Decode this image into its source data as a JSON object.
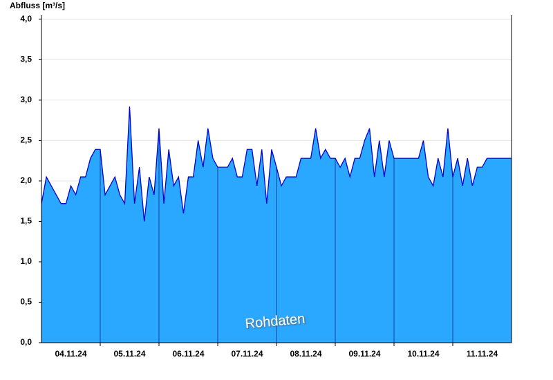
{
  "chart_data": {
    "type": "area",
    "y_label": "Abfluss [m³/s]",
    "watermark": "Rohdaten",
    "xlim": [
      0,
      192
    ],
    "xticks": [
      {
        "value": 12,
        "label": "04.11.24"
      },
      {
        "value": 36,
        "label": "05.11.24"
      },
      {
        "value": 60,
        "label": "06.11.24"
      },
      {
        "value": 84,
        "label": "07.11.24"
      },
      {
        "value": 108,
        "label": "08.11.24"
      },
      {
        "value": 132,
        "label": "09.11.24"
      },
      {
        "value": 156,
        "label": "10.11.24"
      },
      {
        "value": 180,
        "label": "11.11.24"
      }
    ],
    "ylim": [
      0,
      4.05
    ],
    "yticks": [
      {
        "value": 0,
        "label": "0,0"
      },
      {
        "value": 0.5,
        "label": "0,5"
      },
      {
        "value": 1,
        "label": "1,0"
      },
      {
        "value": 1.5,
        "label": "1,5"
      },
      {
        "value": 2,
        "label": "2,0"
      },
      {
        "value": 2.5,
        "label": "2,5"
      },
      {
        "value": 3,
        "label": "3,0"
      },
      {
        "value": 3.5,
        "label": "3,5"
      },
      {
        "value": 4,
        "label": "4,0"
      }
    ],
    "grid": true,
    "fill_color": "#2aa7ff",
    "line_color": "#0000d0",
    "x": [
      0,
      2,
      4,
      6,
      8,
      10,
      12,
      14,
      16,
      18,
      20,
      22,
      24,
      26,
      28,
      30,
      32,
      34,
      36,
      38,
      40,
      42,
      44,
      46,
      48,
      50,
      52,
      54,
      56,
      58,
      60,
      62,
      64,
      66,
      68,
      70,
      72,
      74,
      76,
      78,
      80,
      82,
      84,
      86,
      88,
      90,
      92,
      94,
      96,
      98,
      100,
      102,
      104,
      106,
      108,
      110,
      112,
      114,
      116,
      118,
      120,
      122,
      124,
      126,
      128,
      130,
      132,
      134,
      136,
      138,
      140,
      142,
      144,
      146,
      148,
      150,
      152,
      154,
      156,
      158,
      160,
      162,
      164,
      166,
      168,
      170,
      172,
      174,
      176,
      178,
      180,
      182,
      184,
      186,
      188,
      190,
      192
    ],
    "values": [
      1.72,
      2.05,
      1.94,
      1.83,
      1.72,
      1.72,
      1.94,
      1.83,
      2.05,
      2.05,
      2.28,
      2.39,
      2.39,
      1.83,
      1.94,
      2.05,
      1.83,
      1.72,
      2.92,
      1.72,
      2.17,
      1.5,
      2.05,
      1.83,
      2.65,
      1.72,
      2.39,
      1.94,
      2.05,
      1.6,
      2.05,
      2.05,
      2.5,
      2.17,
      2.65,
      2.28,
      2.17,
      2.17,
      2.17,
      2.28,
      2.05,
      2.05,
      2.39,
      2.39,
      1.94,
      2.39,
      1.72,
      2.39,
      2.17,
      1.94,
      2.05,
      2.05,
      2.05,
      2.28,
      2.28,
      2.28,
      2.65,
      2.28,
      2.39,
      2.28,
      2.28,
      2.17,
      2.28,
      2.05,
      2.28,
      2.28,
      2.5,
      2.65,
      2.05,
      2.5,
      2.05,
      2.5,
      2.28,
      2.28,
      2.28,
      2.28,
      2.28,
      2.28,
      2.5,
      2.05,
      1.94,
      2.28,
      2.05,
      2.65,
      2.05,
      2.28,
      1.94,
      2.28,
      1.94,
      2.17,
      2.17,
      2.28,
      2.28,
      2.28,
      2.28,
      2.28,
      2.28
    ]
  }
}
